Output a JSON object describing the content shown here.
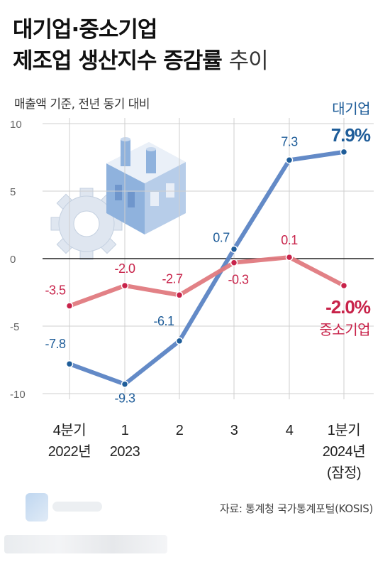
{
  "title_line1": "대기업·중소기업",
  "title_line2_bold": "제조업 생산지수 증감률",
  "title_line2_light": "추이",
  "subtitle": "매출액 기준, 전년 동기 대비",
  "source": "자료: 통계청 국가통계포털(KOSIS)",
  "icons": [
    "factory-icon",
    "gear-icon"
  ],
  "colors": {
    "large": "#5b84c4",
    "large_text": "#1f5d99",
    "small": "#e07a80",
    "small_text": "#c8234a",
    "grid": "#cfcfcf",
    "zero": "#222222"
  },
  "chart_data": {
    "type": "line",
    "categories": [
      [
        "4분기",
        "2022년"
      ],
      [
        "1",
        "2023"
      ],
      [
        "2",
        ""
      ],
      [
        "3",
        ""
      ],
      [
        "4",
        ""
      ],
      [
        "1분기",
        "2024년",
        "(잠정)"
      ]
    ],
    "ylim": [
      -10,
      10
    ],
    "yticks": [
      "10",
      "5",
      "0",
      "-5",
      "-10"
    ],
    "ytick_values": [
      10,
      5,
      0,
      -5,
      -10
    ],
    "series": [
      {
        "name": "대기업",
        "values": [
          -7.8,
          -9.3,
          -6.1,
          0.7,
          7.3,
          7.9
        ],
        "labels": [
          "-7.8",
          "-9.3",
          "-6.1",
          "0.7",
          "7.3",
          "7.9%"
        ]
      },
      {
        "name": "중소기업",
        "values": [
          -3.5,
          -2.0,
          -2.7,
          -0.3,
          0.1,
          -2.0
        ],
        "labels": [
          "-3.5",
          "-2.0",
          "-2.7",
          "-0.3",
          "0.1",
          "-2.0%"
        ]
      }
    ]
  }
}
